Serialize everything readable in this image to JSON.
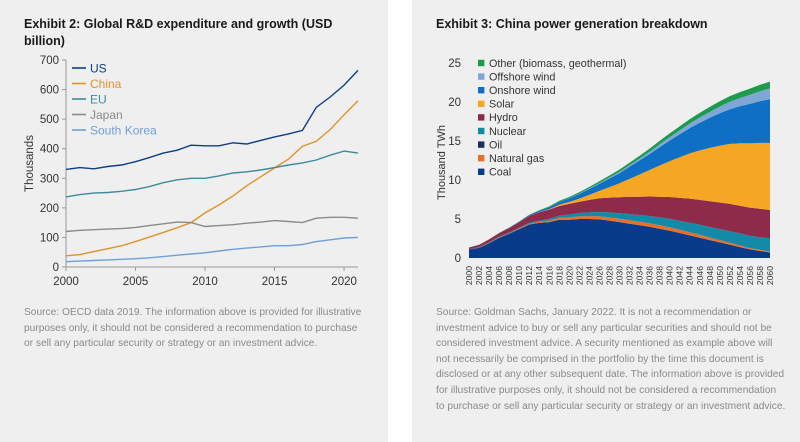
{
  "left": {
    "title": "Exhibit 2: Global R&D expenditure and growth (USD billion)",
    "source": "Source: OECD data 2019. The information above is provided for illustrative purposes only, it should not be considered a recommendation to purchase or sell any particular security or strategy or an investment advice."
  },
  "right": {
    "title": "Exhibit 3: China power generation breakdown",
    "source": "Source: Goldman Sachs, January 2022. It is not a recommendation or investment advice to buy or sell any particular securities and should not be considered investment advice. A security mentioned as example above will not necessarily be comprised in the portfolio by the time this document is disclosed or at any other subsequent date. The information above is provided for illustrative purposes only, it should not be considered a recommendation to purchase or sell any particular security or strategy or an investment advice."
  },
  "chart_data": [
    {
      "type": "line",
      "title": "Exhibit 2: Global R&D expenditure and growth (USD billion)",
      "ylabel": "Thousands",
      "xlabel": "",
      "ylim": [
        0,
        700
      ],
      "xlim": [
        2000,
        2021
      ],
      "yticks": [
        0,
        100,
        200,
        300,
        400,
        500,
        600,
        700
      ],
      "xticks": [
        2000,
        2005,
        2010,
        2015,
        2020
      ],
      "grid": false,
      "legend": "top-left",
      "x": [
        2000,
        2001,
        2002,
        2003,
        2004,
        2005,
        2006,
        2007,
        2008,
        2009,
        2010,
        2011,
        2012,
        2013,
        2014,
        2015,
        2016,
        2017,
        2018,
        2019,
        2020,
        2021
      ],
      "series": [
        {
          "name": "US",
          "color": "#0b3f8a",
          "values": [
            330,
            336,
            332,
            340,
            345,
            356,
            370,
            385,
            395,
            412,
            410,
            410,
            420,
            416,
            428,
            440,
            450,
            462,
            540,
            575,
            615,
            665
          ]
        },
        {
          "name": "China",
          "color": "#e0932b",
          "values": [
            38,
            42,
            52,
            62,
            72,
            86,
            101,
            117,
            133,
            150,
            183,
            210,
            240,
            275,
            305,
            335,
            365,
            408,
            425,
            465,
            515,
            562
          ]
        },
        {
          "name": "EU",
          "color": "#3d8c9b",
          "values": [
            237,
            245,
            250,
            252,
            256,
            262,
            272,
            285,
            295,
            300,
            300,
            308,
            318,
            322,
            328,
            336,
            345,
            352,
            362,
            378,
            392,
            385
          ]
        },
        {
          "name": "Japan",
          "color": "#8a8a8a",
          "values": [
            120,
            124,
            126,
            128,
            130,
            134,
            140,
            146,
            152,
            150,
            137,
            140,
            143,
            148,
            152,
            157,
            154,
            150,
            165,
            168,
            168,
            165
          ]
        },
        {
          "name": "South Korea",
          "color": "#6f9fd8",
          "values": [
            18,
            20,
            22,
            24,
            26,
            28,
            31,
            35,
            40,
            44,
            48,
            54,
            60,
            64,
            68,
            72,
            72,
            76,
            86,
            92,
            98,
            100
          ]
        }
      ]
    },
    {
      "type": "area",
      "title": "Exhibit 3: China power generation breakdown",
      "ylabel": "Thousand TWh",
      "xlabel": "",
      "ylim": [
        0,
        25
      ],
      "yticks": [
        0,
        5,
        10,
        15,
        20,
        25
      ],
      "grid": false,
      "legend": "top-left",
      "stacked": true,
      "x": [
        2000,
        2002,
        2004,
        2006,
        2008,
        2010,
        2012,
        2014,
        2016,
        2018,
        2020,
        2022,
        2024,
        2026,
        2028,
        2030,
        2032,
        2034,
        2036,
        2038,
        2040,
        2042,
        2044,
        2046,
        2048,
        2050,
        2052,
        2054,
        2056,
        2058,
        2060
      ],
      "series": [
        {
          "name": "Coal",
          "color": "#0a3a8a",
          "values": [
            1.05,
            1.3,
            1.9,
            2.6,
            3.1,
            3.7,
            4.3,
            4.5,
            4.6,
            4.9,
            4.9,
            5.0,
            5.0,
            4.95,
            4.8,
            4.6,
            4.4,
            4.2,
            4.0,
            3.75,
            3.5,
            3.2,
            2.9,
            2.6,
            2.3,
            2.0,
            1.7,
            1.4,
            1.1,
            0.9,
            0.7
          ]
        },
        {
          "name": "Natural gas",
          "color": "#e8702a",
          "values": [
            0.02,
            0.03,
            0.04,
            0.05,
            0.06,
            0.08,
            0.1,
            0.15,
            0.2,
            0.25,
            0.3,
            0.33,
            0.35,
            0.38,
            0.4,
            0.42,
            0.44,
            0.45,
            0.45,
            0.45,
            0.44,
            0.42,
            0.4,
            0.37,
            0.33,
            0.3,
            0.26,
            0.22,
            0.18,
            0.15,
            0.12
          ]
        },
        {
          "name": "Oil",
          "color": "#1c2f5a",
          "values": [
            0.05,
            0.05,
            0.05,
            0.04,
            0.03,
            0.02,
            0.02,
            0.02,
            0.02,
            0.02,
            0.02,
            0.02,
            0.02,
            0.02,
            0.02,
            0.02,
            0.02,
            0.01,
            0.01,
            0.01,
            0.01,
            0.01,
            0.01,
            0.01,
            0.01,
            0.01,
            0.01,
            0.01,
            0.01,
            0.01,
            0.01
          ]
        },
        {
          "name": "Nuclear",
          "color": "#138aa8",
          "values": [
            0.02,
            0.03,
            0.05,
            0.06,
            0.07,
            0.08,
            0.1,
            0.13,
            0.2,
            0.27,
            0.36,
            0.42,
            0.48,
            0.55,
            0.62,
            0.7,
            0.78,
            0.85,
            0.92,
            1.0,
            1.07,
            1.13,
            1.2,
            1.27,
            1.33,
            1.4,
            1.46,
            1.52,
            1.57,
            1.62,
            1.67
          ]
        },
        {
          "name": "Hydro",
          "color": "#8e2b4b",
          "values": [
            0.2,
            0.27,
            0.35,
            0.43,
            0.58,
            0.72,
            0.86,
            1.06,
            1.18,
            1.23,
            1.35,
            1.45,
            1.6,
            1.75,
            1.9,
            2.05,
            2.2,
            2.35,
            2.5,
            2.65,
            2.8,
            2.95,
            3.1,
            3.2,
            3.3,
            3.4,
            3.5,
            3.55,
            3.6,
            3.63,
            3.65
          ]
        },
        {
          "name": "Solar",
          "color": "#f5a623",
          "values": [
            0,
            0,
            0,
            0,
            0,
            0,
            0.01,
            0.03,
            0.07,
            0.17,
            0.26,
            0.4,
            0.65,
            0.95,
            1.35,
            1.8,
            2.3,
            2.85,
            3.4,
            4.0,
            4.6,
            5.2,
            5.8,
            6.35,
            6.85,
            7.3,
            7.7,
            8.0,
            8.25,
            8.45,
            8.6
          ]
        },
        {
          "name": "Onshore wind",
          "color": "#0f6fc4",
          "values": [
            0,
            0,
            0,
            0.01,
            0.02,
            0.04,
            0.09,
            0.15,
            0.23,
            0.35,
            0.45,
            0.6,
            0.75,
            0.92,
            1.1,
            1.3,
            1.55,
            1.8,
            2.05,
            2.35,
            2.65,
            2.95,
            3.25,
            3.55,
            3.85,
            4.15,
            4.45,
            4.75,
            5.05,
            5.35,
            5.6
          ]
        },
        {
          "name": "Offshore wind",
          "color": "#7fa7d6",
          "values": [
            0,
            0,
            0,
            0,
            0,
            0,
            0,
            0,
            0.01,
            0.02,
            0.03,
            0.05,
            0.07,
            0.1,
            0.13,
            0.16,
            0.2,
            0.25,
            0.3,
            0.36,
            0.43,
            0.5,
            0.58,
            0.67,
            0.76,
            0.86,
            0.96,
            1.06,
            1.16,
            1.27,
            1.38
          ]
        },
        {
          "name": "Other (biomass, geothermal)",
          "color": "#1d9a4e",
          "values": [
            0.01,
            0.01,
            0.02,
            0.03,
            0.04,
            0.05,
            0.06,
            0.08,
            0.1,
            0.12,
            0.15,
            0.18,
            0.2,
            0.23,
            0.26,
            0.29,
            0.32,
            0.36,
            0.4,
            0.44,
            0.48,
            0.52,
            0.56,
            0.6,
            0.64,
            0.68,
            0.72,
            0.76,
            0.8,
            0.84,
            0.88
          ]
        }
      ]
    }
  ]
}
